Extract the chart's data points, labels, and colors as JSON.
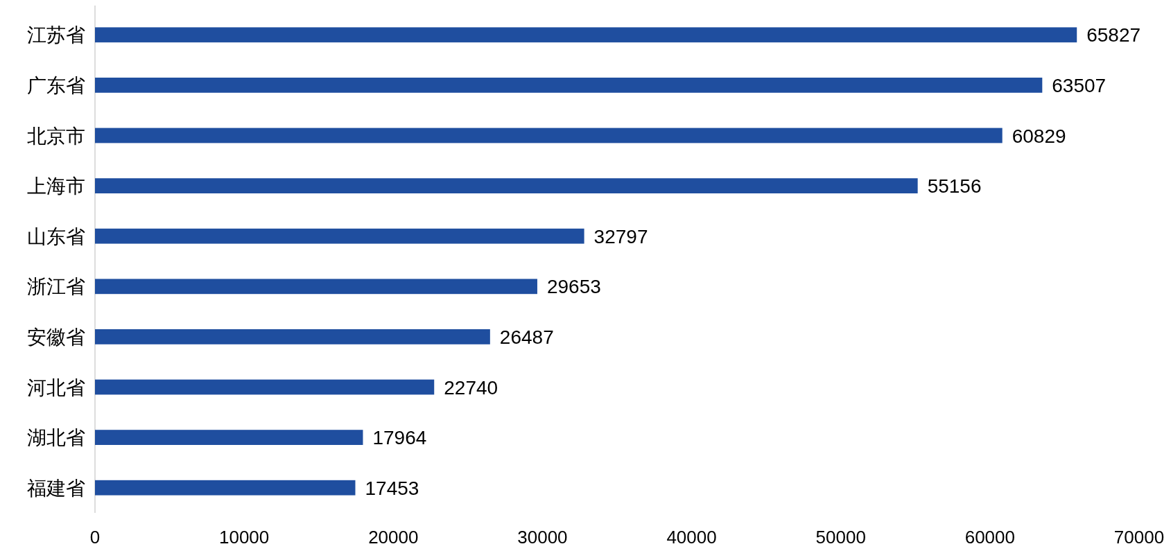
{
  "chart_data": {
    "type": "bar",
    "orientation": "horizontal",
    "categories": [
      "江苏省",
      "广东省",
      "北京市",
      "上海市",
      "山东省",
      "浙江省",
      "安徽省",
      "河北省",
      "湖北省",
      "福建省"
    ],
    "values": [
      65827,
      63507,
      60829,
      55156,
      32797,
      29653,
      26487,
      22740,
      17964,
      17453
    ],
    "color": "#1f4e9f",
    "xlim": [
      0,
      70000
    ],
    "xticks": [
      0,
      10000,
      20000,
      30000,
      40000,
      50000,
      60000,
      70000
    ],
    "data_labels": true
  }
}
